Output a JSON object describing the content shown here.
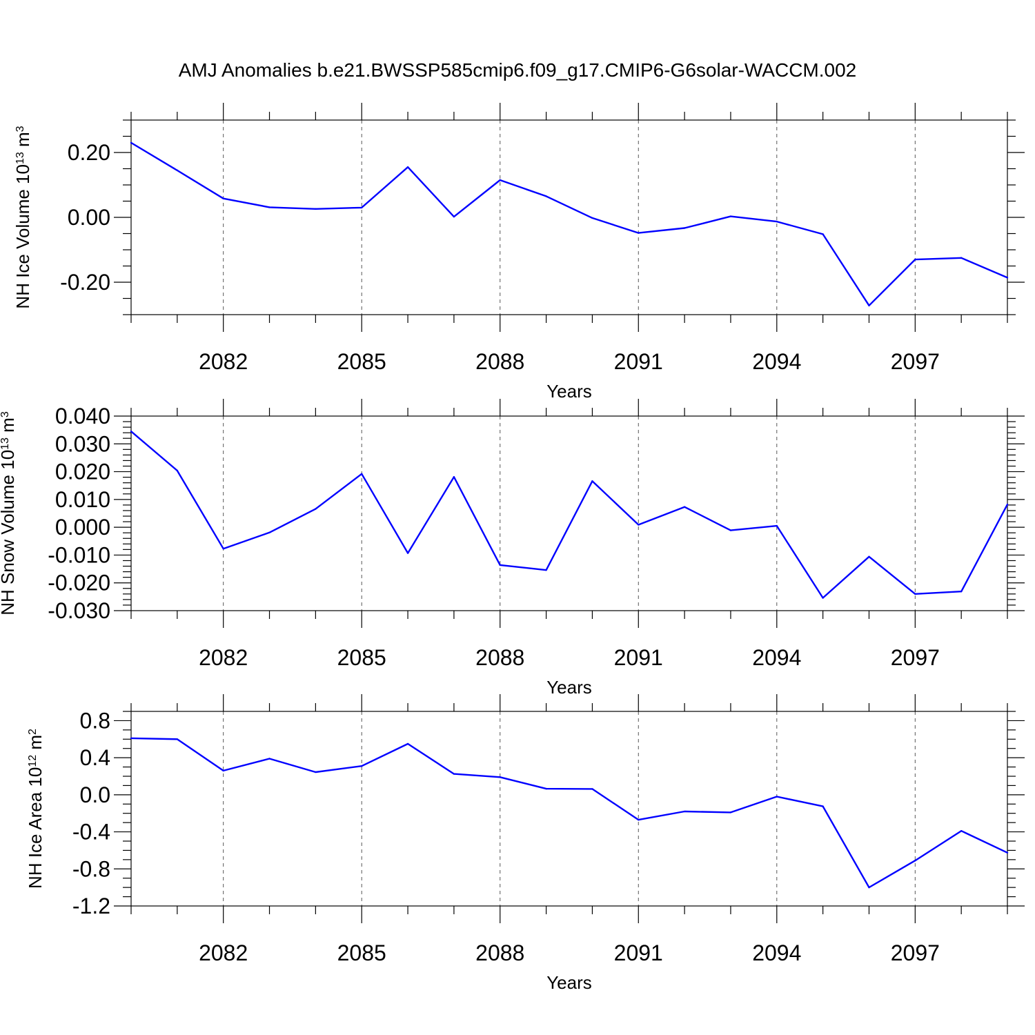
{
  "figure": {
    "title": "AMJ Anomalies b.e21.BWSSP585cmip6.f09_g17.CMIP6-G6solar-WACCM.002",
    "line_color": "#0000ff"
  },
  "chart_data": [
    {
      "type": "line",
      "title": "",
      "xlabel": "Years",
      "ylabel": {
        "base": "NH Ice Volume 10",
        "sup1": "13",
        "mid": " m",
        "sup2": "3"
      },
      "xlim": [
        2080,
        2099
      ],
      "ylim": [
        -0.3,
        0.3
      ],
      "grid": "x-dashed",
      "x_ticks": [
        2082,
        2085,
        2088,
        2091,
        2094,
        2097
      ],
      "x_tick_labels": [
        "2082",
        "2085",
        "2088",
        "2091",
        "2094",
        "2097"
      ],
      "y_ticks": [
        -0.2,
        0.0,
        0.2
      ],
      "y_tick_labels": [
        "-0.20",
        "0.00",
        "0.20"
      ],
      "y_minor_step": 0.05,
      "x": [
        2080,
        2081,
        2082,
        2083,
        2084,
        2085,
        2086,
        2087,
        2088,
        2089,
        2090,
        2091,
        2092,
        2093,
        2094,
        2095,
        2096,
        2097,
        2098,
        2099
      ],
      "series": [
        {
          "values": [
            0.23,
            0.145,
            0.058,
            0.031,
            0.026,
            0.03,
            0.155,
            0.002,
            0.115,
            0.065,
            -0.002,
            -0.048,
            -0.033,
            0.003,
            -0.013,
            -0.052,
            -0.272,
            -0.13,
            -0.125,
            -0.186
          ]
        }
      ]
    },
    {
      "type": "line",
      "title": "",
      "xlabel": "Years",
      "ylabel": {
        "base": "NH Snow Volume 10",
        "sup1": "13",
        "mid": " m",
        "sup2": "3"
      },
      "xlim": [
        2080,
        2099
      ],
      "ylim": [
        -0.03,
        0.04
      ],
      "grid": "x-dashed",
      "x_ticks": [
        2082,
        2085,
        2088,
        2091,
        2094,
        2097
      ],
      "x_tick_labels": [
        "2082",
        "2085",
        "2088",
        "2091",
        "2094",
        "2097"
      ],
      "y_ticks": [
        -0.03,
        -0.02,
        -0.01,
        0.0,
        0.01,
        0.02,
        0.03,
        0.04
      ],
      "y_tick_labels": [
        "-0.030",
        "-0.020",
        "-0.010",
        "0.000",
        "0.010",
        "0.020",
        "0.030",
        "0.040"
      ],
      "y_minor_step": 0.002,
      "x": [
        2080,
        2081,
        2082,
        2083,
        2084,
        2085,
        2086,
        2087,
        2088,
        2089,
        2090,
        2091,
        2092,
        2093,
        2094,
        2095,
        2096,
        2097,
        2098,
        2099
      ],
      "series": [
        {
          "values": [
            0.0345,
            0.0204,
            -0.0077,
            -0.0019,
            0.0066,
            0.0192,
            -0.0093,
            0.0181,
            -0.0136,
            -0.0154,
            0.0166,
            0.0009,
            0.0073,
            -0.0011,
            0.0005,
            -0.0254,
            -0.0106,
            -0.024,
            -0.0231,
            0.0082
          ]
        }
      ]
    },
    {
      "type": "line",
      "title": "",
      "xlabel": "Years",
      "ylabel": {
        "base": "NH Ice Area 10",
        "sup1": "12",
        "mid": " m",
        "sup2": "2"
      },
      "xlim": [
        2080,
        2099
      ],
      "ylim": [
        -1.2,
        0.9
      ],
      "grid": "x-dashed",
      "x_ticks": [
        2082,
        2085,
        2088,
        2091,
        2094,
        2097
      ],
      "x_tick_labels": [
        "2082",
        "2085",
        "2088",
        "2091",
        "2094",
        "2097"
      ],
      "y_ticks": [
        -1.2,
        -0.8,
        -0.4,
        0.0,
        0.4,
        0.8
      ],
      "y_tick_labels": [
        "-1.2",
        "-0.8",
        "-0.4",
        "0.0",
        "0.4",
        "0.8"
      ],
      "y_minor_step": 0.1,
      "x": [
        2080,
        2081,
        2082,
        2083,
        2084,
        2085,
        2086,
        2087,
        2088,
        2089,
        2090,
        2091,
        2092,
        2093,
        2094,
        2095,
        2096,
        2097,
        2098,
        2099
      ],
      "series": [
        {
          "values": [
            0.61,
            0.6,
            0.26,
            0.39,
            0.245,
            0.31,
            0.55,
            0.225,
            0.19,
            0.065,
            0.063,
            -0.27,
            -0.18,
            -0.19,
            -0.02,
            -0.125,
            -1.0,
            -0.71,
            -0.39,
            -0.625
          ]
        }
      ]
    }
  ]
}
